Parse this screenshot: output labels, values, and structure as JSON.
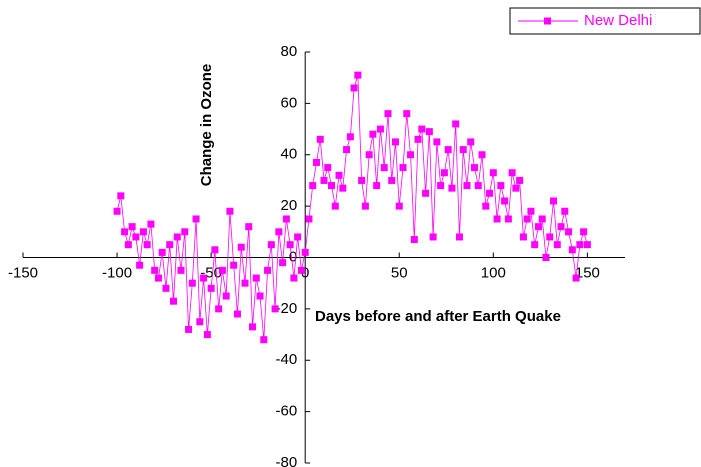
{
  "chart_data": {
    "type": "line",
    "ylabel": "Change in Ozone",
    "xlabel": "Days before and after Earth Quake",
    "x": [
      -100,
      -98,
      -96,
      -94,
      -92,
      -90,
      -88,
      -86,
      -84,
      -82,
      -80,
      -78,
      -76,
      -74,
      -72,
      -70,
      -68,
      -66,
      -64,
      -62,
      -60,
      -58,
      -56,
      -54,
      -52,
      -50,
      -48,
      -46,
      -44,
      -42,
      -40,
      -38,
      -36,
      -34,
      -32,
      -30,
      -28,
      -26,
      -24,
      -22,
      -20,
      -18,
      -16,
      -14,
      -12,
      -10,
      -8,
      -6,
      -4,
      -2,
      0,
      2,
      4,
      6,
      8,
      10,
      12,
      14,
      16,
      18,
      20,
      22,
      24,
      26,
      28,
      30,
      32,
      34,
      36,
      38,
      40,
      42,
      44,
      46,
      48,
      50,
      52,
      54,
      56,
      58,
      60,
      62,
      64,
      66,
      68,
      70,
      72,
      74,
      76,
      78,
      80,
      82,
      84,
      86,
      88,
      90,
      92,
      94,
      96,
      98,
      100,
      102,
      104,
      106,
      108,
      110,
      112,
      114,
      116,
      118,
      120,
      122,
      124,
      126,
      128,
      130,
      132,
      134,
      136,
      138,
      140,
      142,
      144,
      146,
      148,
      150
    ],
    "series": [
      {
        "name": "New Delhi",
        "color": "#ff00ff",
        "values": [
          18,
          24,
          10,
          5,
          12,
          8,
          -3,
          10,
          5,
          13,
          -5,
          -8,
          2,
          -12,
          5,
          -17,
          8,
          -5,
          10,
          -28,
          -10,
          15,
          -25,
          -8,
          -30,
          -12,
          3,
          -20,
          -5,
          -15,
          18,
          -3,
          -22,
          4,
          -10,
          12,
          -27,
          -8,
          -15,
          -32,
          -5,
          5,
          -20,
          10,
          -2,
          15,
          5,
          -8,
          8,
          -5,
          2,
          15,
          28,
          37,
          46,
          30,
          35,
          28,
          20,
          32,
          27,
          42,
          47,
          66,
          71,
          30,
          20,
          40,
          48,
          28,
          50,
          35,
          56,
          30,
          45,
          20,
          35,
          56,
          40,
          7,
          46,
          50,
          25,
          49,
          8,
          45,
          28,
          33,
          42,
          27,
          52,
          8,
          42,
          28,
          45,
          35,
          28,
          40,
          20,
          25,
          33,
          15,
          28,
          22,
          15,
          33,
          27,
          30,
          8,
          15,
          18,
          5,
          12,
          15,
          0,
          8,
          22,
          5,
          12,
          18,
          10,
          3,
          -8,
          5,
          10,
          5
        ]
      }
    ],
    "xlim": [
      -150,
      170
    ],
    "xticks": [
      -150,
      -100,
      -50,
      0,
      50,
      100,
      150
    ],
    "ylim": [
      -80,
      80
    ],
    "yticks": [
      -80,
      -60,
      -40,
      -20,
      0,
      20,
      40,
      60,
      80
    ],
    "legend": "top-right"
  }
}
